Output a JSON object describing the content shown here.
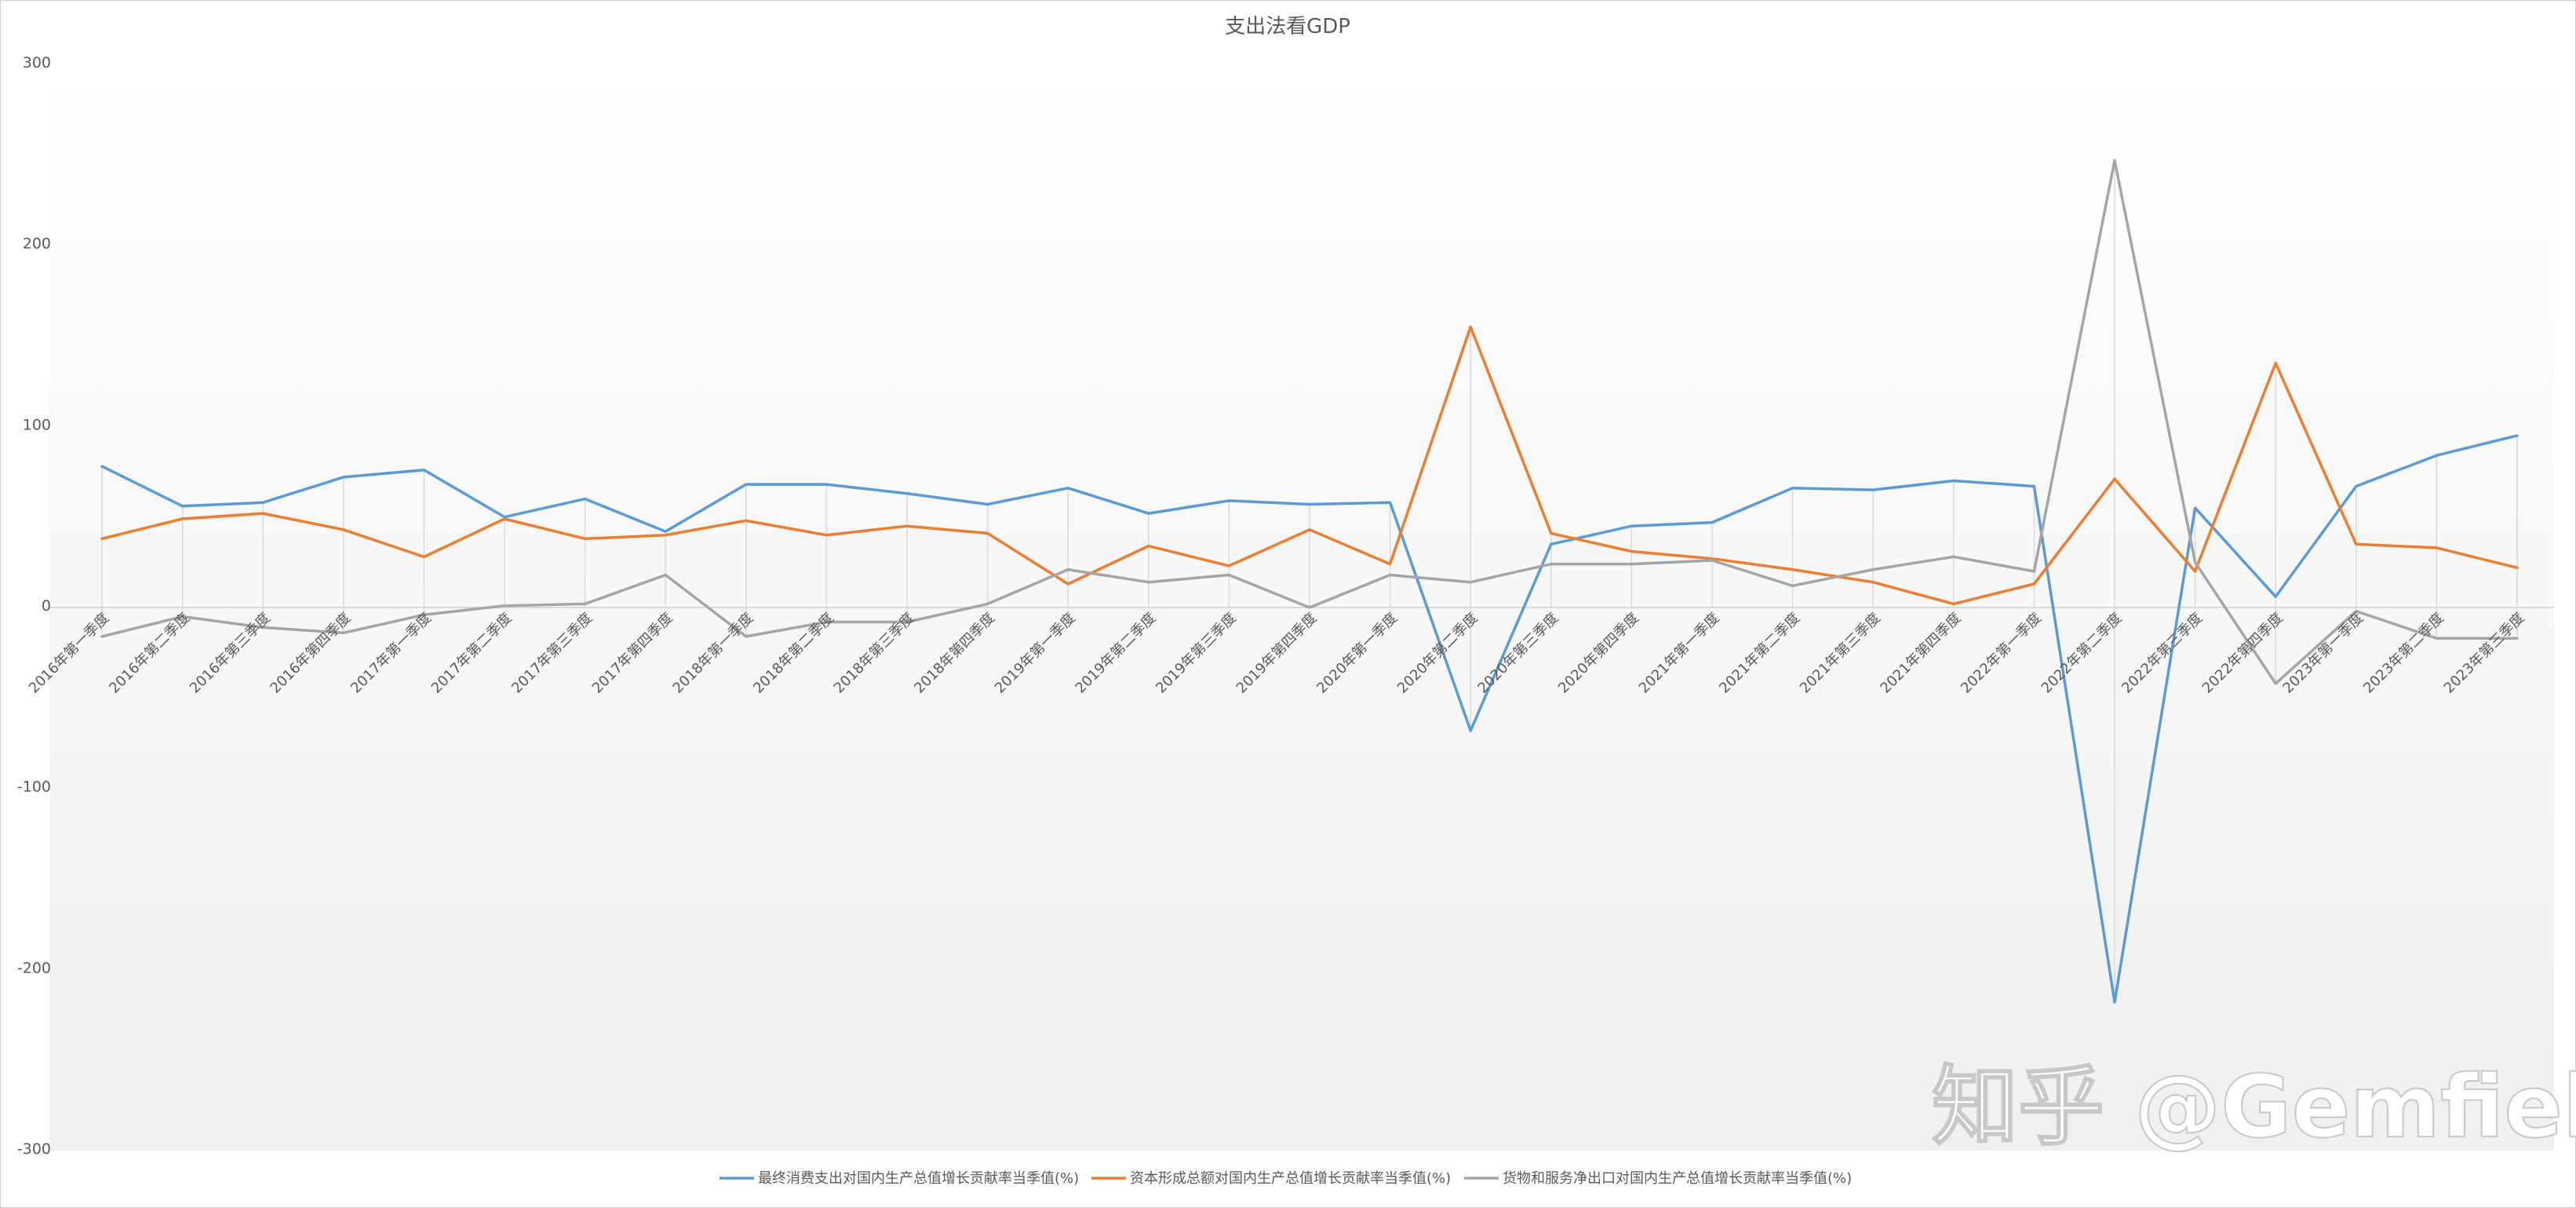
{
  "chart_data": {
    "type": "line",
    "title": "支出法看GDP",
    "xlabel": "",
    "ylabel": "",
    "ylim": [
      -300,
      300
    ],
    "yticks": [
      300,
      200,
      100,
      0,
      -100,
      -200,
      -300
    ],
    "grid": "vertical dropline per category",
    "legend_position": "bottom",
    "categories": [
      "2016年第一季度",
      "2016年第二季度",
      "2016年第三季度",
      "2016年第四季度",
      "2017年第一季度",
      "2017年第二季度",
      "2017年第三季度",
      "2017年第四季度",
      "2018年第一季度",
      "2018年第二季度",
      "2018年第三季度",
      "2018年第四季度",
      "2019年第一季度",
      "2019年第二季度",
      "2019年第三季度",
      "2019年第四季度",
      "2020年第一季度",
      "2020年第二季度",
      "2020年第三季度",
      "2020年第四季度",
      "2021年第一季度",
      "2021年第二季度",
      "2021年第三季度",
      "2021年第四季度",
      "2022年第一季度",
      "2022年第二季度",
      "2022年第三季度",
      "2022年第四季度",
      "2023年第一季度",
      "2023年第二季度",
      "2023年第三季度"
    ],
    "series": [
      {
        "name": "最终消费支出对国内生产总值增长贡献率当季值(%)",
        "color": "#5b9bd5",
        "values": [
          78,
          56,
          58,
          72,
          76,
          50,
          60,
          42,
          68,
          68,
          63,
          57,
          66,
          52,
          59,
          57,
          58,
          -68,
          35,
          45,
          47,
          66,
          65,
          70,
          67,
          -218,
          55,
          6,
          67,
          84,
          95
        ]
      },
      {
        "name": "资本形成总额对国内生产总值增长贡献率当季值(%)",
        "color": "#ed7d31",
        "values": [
          38,
          49,
          52,
          43,
          28,
          49,
          38,
          40,
          48,
          40,
          45,
          41,
          13,
          34,
          23,
          43,
          24,
          155,
          41,
          31,
          27,
          21,
          14,
          2,
          13,
          71,
          20,
          135,
          35,
          33,
          22
        ]
      },
      {
        "name": "货物和服务净出口对国内生产总值增长贡献率当季值(%)",
        "color": "#a5a5a5",
        "values": [
          -16,
          -5,
          -11,
          -14,
          -4,
          1,
          2,
          18,
          -16,
          -8,
          -8,
          2,
          21,
          14,
          18,
          0,
          18,
          14,
          24,
          24,
          26,
          12,
          21,
          28,
          20,
          247,
          25,
          -42,
          -2,
          -17,
          -17
        ]
      }
    ]
  },
  "watermark": "知乎 @Gemfield"
}
